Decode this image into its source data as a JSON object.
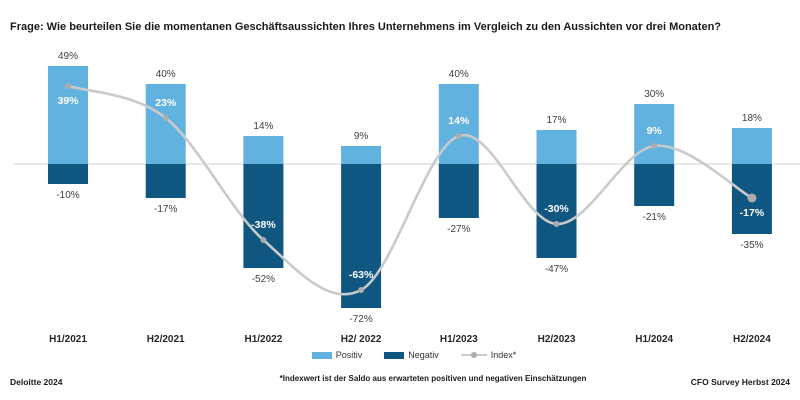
{
  "title": "Frage: Wie beurteilen Sie die momentanen Geschäftsaussichten Ihres Unternehmens im Vergleich zu den Aussichten vor drei Monaten?",
  "colors": {
    "positive": "#62B2E0",
    "negative": "#0F5680",
    "index_line": "#C9CACB",
    "index_marker": "#ABACAE",
    "zero_line": "#D9D9D9",
    "label_text": "#404040",
    "inside_label_text": "#FFFFFF"
  },
  "legend": {
    "positiv": "Positiv",
    "negativ": "Negativ",
    "index": "Index*"
  },
  "footnote": "*Indexwert ist der Saldo aus erwarteten positiven und negativen Einschätzungen",
  "footer_left": "Deloitte 2024",
  "footer_right": "CFO Survey Herbst 2024",
  "chart_data": {
    "type": "bar",
    "title": "Frage: Wie beurteilen Sie die momentanen Geschäftsaussichten Ihres Unternehmens im Vergleich zu den Aussichten vor drei Monaten?",
    "categories": [
      "H1/2021",
      "H2/2021",
      "H1/2022",
      "H2/ 2022",
      "H1/2023",
      "H2/2023",
      "H1/2024",
      "H2/2024"
    ],
    "series": [
      {
        "name": "Positiv",
        "type": "bar",
        "color": "#62B2E0",
        "unit": "%",
        "values": [
          49,
          40,
          14,
          9,
          40,
          17,
          30,
          18
        ]
      },
      {
        "name": "Negativ",
        "type": "bar",
        "color": "#0F5680",
        "unit": "%",
        "values": [
          -10,
          -17,
          -52,
          -72,
          -27,
          -47,
          -21,
          -35
        ]
      },
      {
        "name": "Index*",
        "type": "line",
        "color": "#C9CACB",
        "unit": "%",
        "smooth": true,
        "values": [
          39,
          23,
          -38,
          -63,
          14,
          -30,
          9,
          -17
        ],
        "label_side": [
          "below",
          "above",
          "above",
          "above",
          "above",
          "above",
          "above",
          "below"
        ]
      }
    ],
    "ylim": [
      -80,
      55
    ],
    "grid": false,
    "value_labels": true,
    "legend_position": "bottom"
  }
}
